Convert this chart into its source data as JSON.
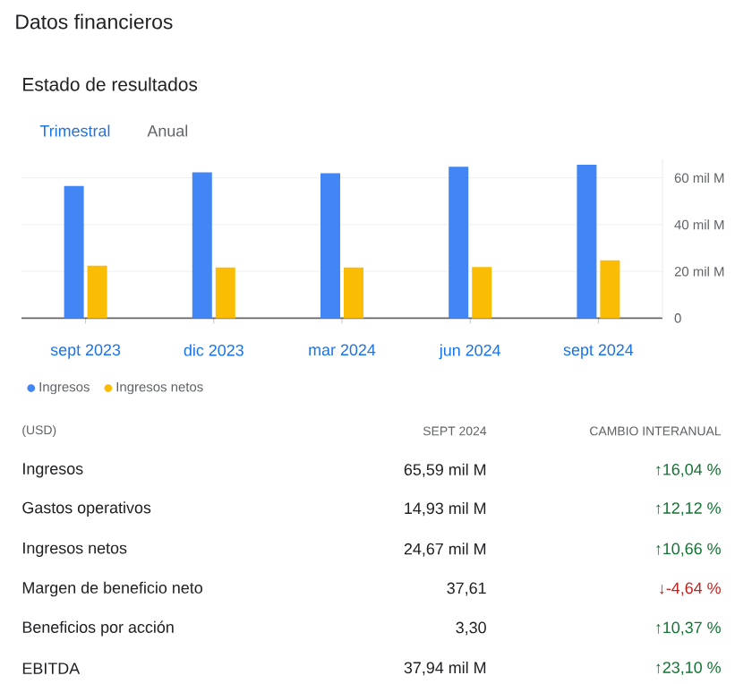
{
  "chart_data": {
    "type": "bar",
    "title": "Datos financieros",
    "subtitle": "Estado de resultados",
    "categories": [
      "sept 2023",
      "dic 2023",
      "mar 2024",
      "jun 2024",
      "sept 2024"
    ],
    "series": [
      {
        "name": "Ingresos",
        "color": "#4285f4",
        "values": [
          56.5,
          62.3,
          61.9,
          64.7,
          65.6
        ]
      },
      {
        "name": "Ingresos netos",
        "color": "#fbbc04",
        "values": [
          22.4,
          21.7,
          21.7,
          21.9,
          24.7
        ]
      }
    ],
    "ylim": [
      0,
      68
    ],
    "yticks": [
      0,
      {
        "value": 20,
        "label": "20 mil M"
      },
      {
        "value": 40,
        "label": "40 mil M"
      },
      {
        "value": 60,
        "label": "60 mil M"
      }
    ],
    "grid": "y",
    "legend": "bottom left",
    "annotations": [
      "Trimestral",
      "Anual",
      "(USD)",
      "SEPT 2024",
      "CAMBIO INTERANUAL",
      "Ingresos",
      "65,59 mil M",
      "↑16,04 %",
      "Gastos operativos",
      "14,93 mil M",
      "↑12,12 %",
      "Ingresos netos",
      "24,67 mil M",
      "↑10,66 %",
      "Margen de beneficio neto",
      "37,61",
      "↓-4,64 %",
      "Beneficios por acción",
      "3,30",
      "↑10,37 %",
      "EBITDA",
      "37,94 mil M",
      "↑23,10 %"
    ]
  }
}
